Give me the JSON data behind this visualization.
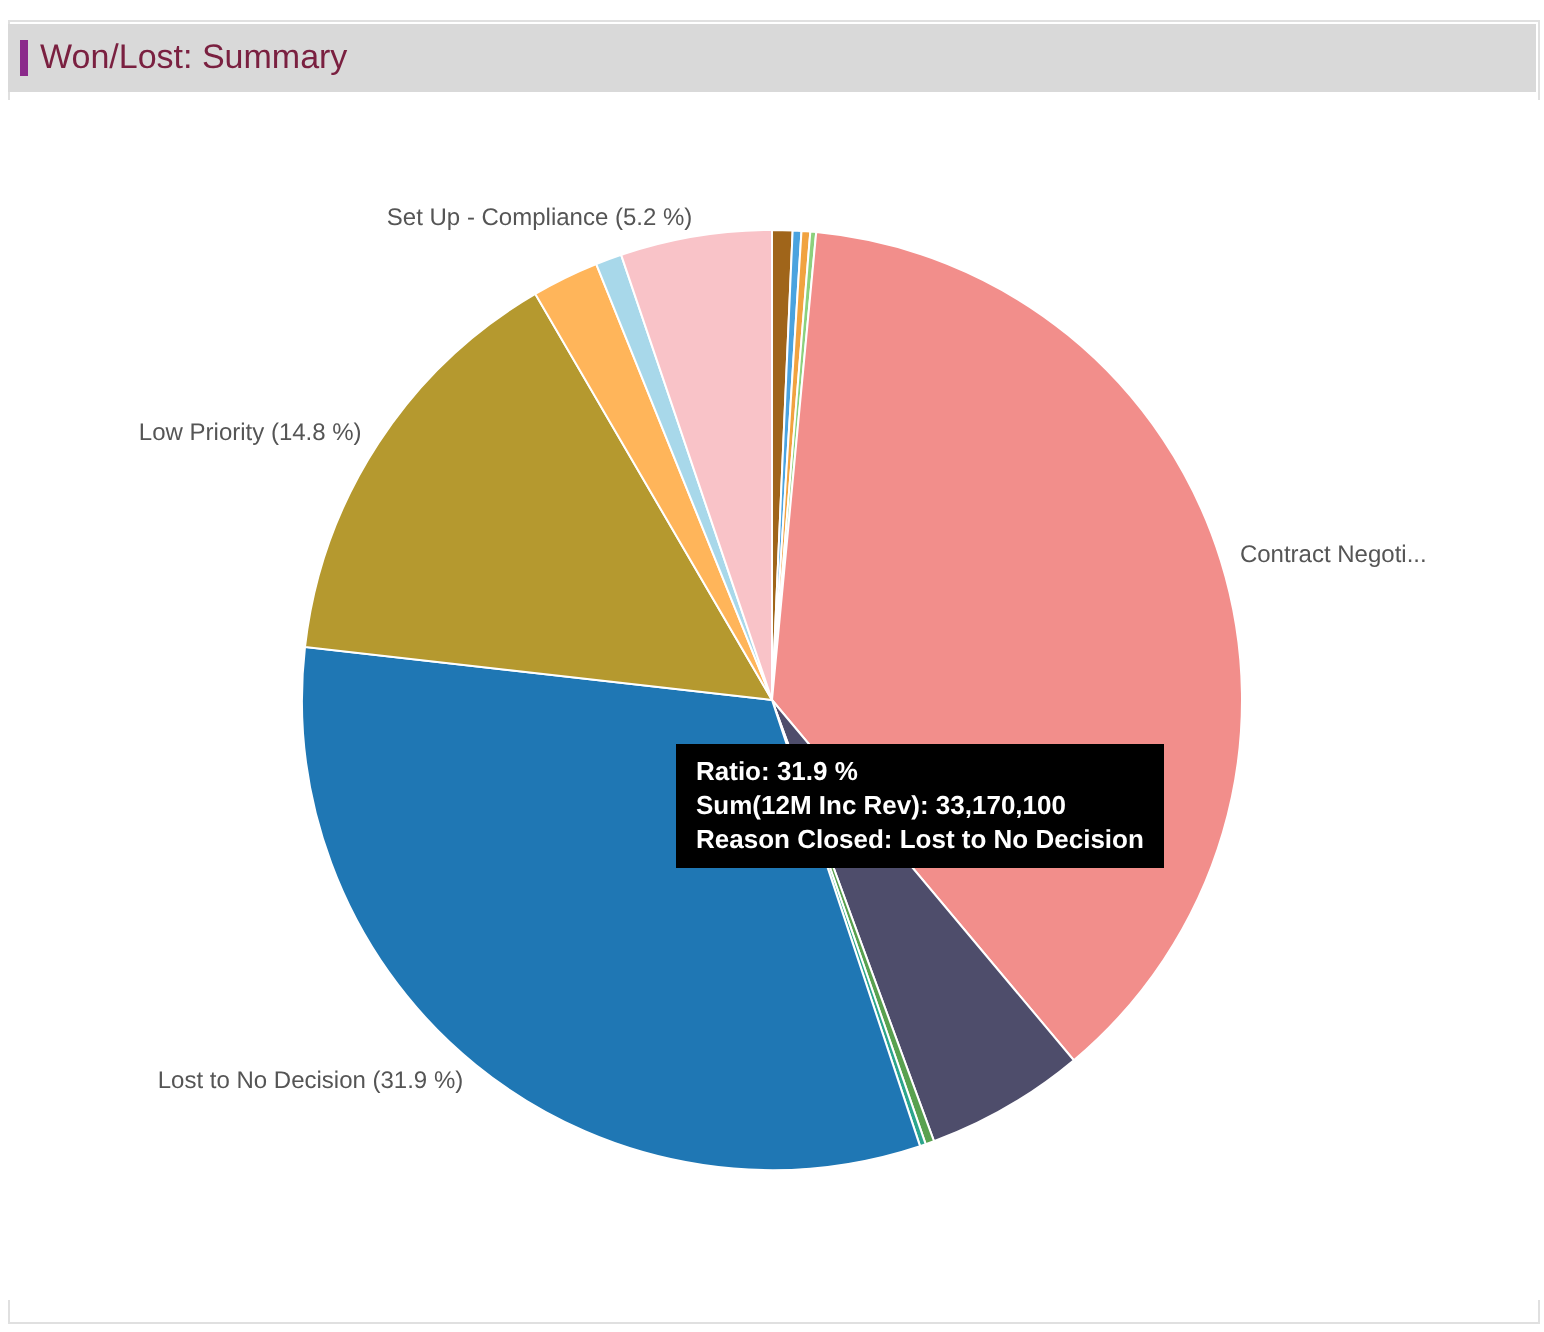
{
  "chart_data": {
    "type": "pie",
    "title": "Won/Lost: Summary",
    "categories": [
      null,
      null,
      null,
      null,
      "Contract Negoti...",
      null,
      null,
      null,
      "Lost to No Decision",
      "Low Priority",
      null,
      null,
      "Set Up - Compliance"
    ],
    "values": [
      0.7,
      0.3,
      0.3,
      0.2,
      37.4,
      5.5,
      0.3,
      0.2,
      31.9,
      14.8,
      2.3,
      0.9,
      5.2
    ],
    "value_labels": [
      null,
      null,
      null,
      null,
      null,
      null,
      null,
      null,
      "(31.9 %)",
      "(14.8 %)",
      null,
      null,
      "(5.2 %)"
    ],
    "colors": [
      "#a0651a",
      "#4aa3df",
      "#f1a340",
      "#8cd17d",
      "#f28e8b",
      "#4e4d6b",
      "#59a14f",
      "#2ca58d",
      "#1f77b4",
      "#b5992f",
      "#ffb55a",
      "#a8d8ea",
      "#f9c3c8"
    ],
    "annotations": [
      "Ratio: 31.9 %",
      "Sum(12M Inc Rev): 33,170,100",
      "Reason Closed: Lost to No Decision"
    ]
  }
}
